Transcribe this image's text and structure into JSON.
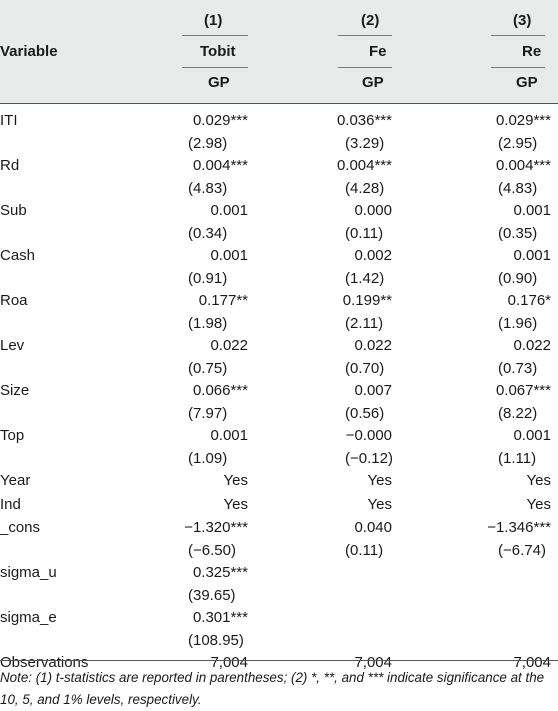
{
  "header": {
    "variable_label": "Variable",
    "col_numbers": [
      "(1)",
      "(2)",
      "(3)"
    ],
    "models": [
      "Tobit",
      "Fe",
      "Re"
    ],
    "dependent": [
      "GP",
      "GP",
      "GP"
    ]
  },
  "rows": [
    {
      "label": "ITI",
      "coef": [
        "0.029***",
        "0.036***",
        "0.029***"
      ],
      "t": [
        "(2.98)",
        "(3.29)",
        "(2.95)"
      ]
    },
    {
      "label": "Rd",
      "coef": [
        "0.004***",
        "0.004***",
        "0.004***"
      ],
      "t": [
        "(4.83)",
        "(4.28)",
        "(4.83)"
      ]
    },
    {
      "label": "Sub",
      "coef": [
        "0.001",
        "0.000",
        "0.001"
      ],
      "t": [
        "(0.34)",
        "(0.11)",
        "(0.35)"
      ]
    },
    {
      "label": "Cash",
      "coef": [
        "0.001",
        "0.002",
        "0.001"
      ],
      "t": [
        "(0.91)",
        "(1.42)",
        "(0.90)"
      ]
    },
    {
      "label": "Roa",
      "coef": [
        "0.177**",
        "0.199**",
        "0.176*"
      ],
      "t": [
        "(1.98)",
        "(2.11)",
        "(1.96)"
      ]
    },
    {
      "label": "Lev",
      "coef": [
        "0.022",
        "0.022",
        "0.022"
      ],
      "t": [
        "(0.75)",
        "(0.70)",
        "(0.73)"
      ]
    },
    {
      "label": "Size",
      "coef": [
        "0.066***",
        "0.007",
        "0.067***"
      ],
      "t": [
        "(7.97)",
        "(0.56)",
        "(8.22)"
      ]
    },
    {
      "label": "Top",
      "coef": [
        "0.001",
        "−0.000",
        "0.001"
      ],
      "t": [
        "(1.09)",
        "(−0.12)",
        "(1.11)"
      ]
    },
    {
      "label": "Year",
      "coef": [
        "Yes",
        "Yes",
        "Yes"
      ],
      "t": [
        "",
        "",
        ""
      ]
    },
    {
      "label": "Ind",
      "coef": [
        "Yes",
        "Yes",
        "Yes"
      ],
      "t": [
        "",
        "",
        ""
      ]
    },
    {
      "label": "_cons",
      "coef": [
        "−1.320***",
        "0.040",
        "−1.346***"
      ],
      "t": [
        "(−6.50)",
        "(0.11)",
        "(−6.74)"
      ]
    },
    {
      "label": "sigma_u",
      "coef": [
        "0.325***",
        "",
        ""
      ],
      "t": [
        "(39.65)",
        "",
        ""
      ]
    },
    {
      "label": "sigma_e",
      "coef": [
        "0.301***",
        "",
        ""
      ],
      "t": [
        "(108.95)",
        "",
        ""
      ]
    },
    {
      "label": "Observations",
      "coef": [
        "7,004",
        "7,004",
        "7,004"
      ],
      "t": [
        "",
        "",
        ""
      ]
    }
  ],
  "note": "Note: (1) t-statistics are reported in parentheses; (2) *, **, and *** indicate significance at the 10, 5, and 1% levels, respectively."
}
